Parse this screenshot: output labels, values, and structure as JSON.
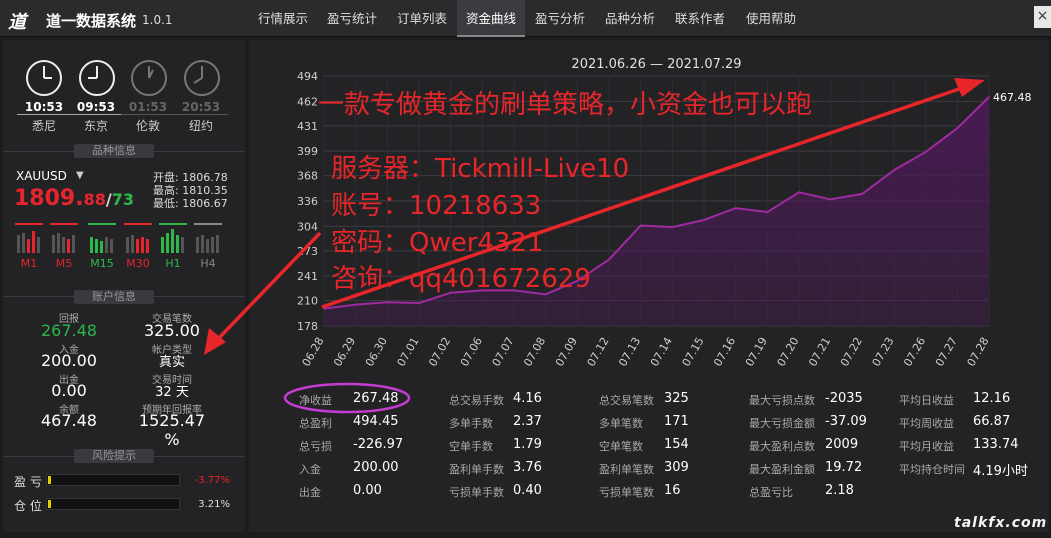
{
  "app": {
    "logo_text": "道一",
    "name": "道一数据系统",
    "version": "1.0.1"
  },
  "tabs": [
    {
      "label": "行情展示",
      "active": false
    },
    {
      "label": "盈亏统计",
      "active": false
    },
    {
      "label": "订单列表",
      "active": false
    },
    {
      "label": "资金曲线",
      "active": true
    },
    {
      "label": "盈亏分析",
      "active": false
    },
    {
      "label": "品种分析",
      "active": false
    },
    {
      "label": "联系作者",
      "active": false
    },
    {
      "label": "使用帮助",
      "active": false
    }
  ],
  "window": {
    "close_label": "×"
  },
  "clocks": [
    {
      "time": "10:53",
      "city": "悉尼",
      "active": true
    },
    {
      "time": "09:53",
      "city": "东京",
      "active": true
    },
    {
      "time": "01:53",
      "city": "伦敦",
      "active": false
    },
    {
      "time": "20:53",
      "city": "纽约",
      "active": false
    }
  ],
  "symbol_info": {
    "title": "品种信息",
    "symbol": "XAUUSD",
    "dropdown_icon": "triangle-down-icon",
    "price_main": "1809.",
    "price_frac": "88",
    "price_sep": "/",
    "price_alt": "73",
    "open_label": "开盘:",
    "open": "1806.78",
    "high_label": "最高:",
    "high": "1810.35",
    "low_label": "最低:",
    "low": "1806.67",
    "timeframes": [
      {
        "label": "M1",
        "color": "#e8242c"
      },
      {
        "label": "M5",
        "color": "#e8242c"
      },
      {
        "label": "M15",
        "color": "#2eb84a"
      },
      {
        "label": "M30",
        "color": "#e8242c"
      },
      {
        "label": "H1",
        "color": "#2eb84a"
      },
      {
        "label": "H4",
        "color": "#888888"
      }
    ]
  },
  "account": {
    "title": "账户信息",
    "return_label": "回报",
    "return_value": "267.48",
    "trades_label": "交易笔数",
    "trades_value": "325.00",
    "deposit_label": "入金",
    "deposit_value": "200.00",
    "account_type_label": "帐户类型",
    "account_type_value": "真实",
    "withdraw_label": "出金",
    "withdraw_value": "0.00",
    "trade_time_label": "交易时间",
    "trade_time_value": "32 天",
    "balance_label": "余额",
    "balance_value": "467.48",
    "annual_label": "预期年回报率",
    "annual_value": "1525.47 %"
  },
  "risk": {
    "title": "风险提示",
    "pl_label": "盈 亏",
    "pl_value": "-3.77%",
    "pl_level": 0.02,
    "pos_label": "仓 位",
    "pos_value": "3.21%",
    "pos_level": 0.02
  },
  "chart_data": {
    "type": "area",
    "title": "2021.06.26 — 2021.07.29",
    "x": [
      "06.28",
      "06.29",
      "06.30",
      "07.01",
      "07.02",
      "07.06",
      "07.07",
      "07.08",
      "07.09",
      "07.12",
      "07.13",
      "07.14",
      "07.15",
      "07.16",
      "07.19",
      "07.20",
      "07.21",
      "07.22",
      "07.23",
      "07.26",
      "07.27",
      "07.28"
    ],
    "y": [
      200,
      205,
      208,
      207,
      220,
      223,
      223,
      218,
      235,
      262,
      305,
      303,
      312,
      327,
      322,
      347,
      338,
      345,
      375,
      398,
      428,
      467.48
    ],
    "yticks": [
      178,
      210,
      241,
      273,
      304,
      336,
      368,
      399,
      431,
      462,
      494
    ],
    "ylim": [
      178,
      494
    ],
    "end_label": "467.48",
    "line_color": "#a02aa0",
    "fill_color": "#4a1a55",
    "grid": true
  },
  "stats": [
    [
      {
        "label": "净收益",
        "value": "267.48",
        "highlighted": true
      },
      {
        "label": "总盈利",
        "value": "494.45"
      },
      {
        "label": "总亏损",
        "value": "-226.97"
      },
      {
        "label": "入金",
        "value": "200.00"
      },
      {
        "label": "出金",
        "value": "0.00"
      }
    ],
    [
      {
        "label": "总交易手数",
        "value": "4.16"
      },
      {
        "label": "多单手数",
        "value": "2.37"
      },
      {
        "label": "空单手数",
        "value": "1.79"
      },
      {
        "label": "盈利单手数",
        "value": "3.76"
      },
      {
        "label": "亏损单手数",
        "value": "0.40"
      }
    ],
    [
      {
        "label": "总交易笔数",
        "value": "325"
      },
      {
        "label": "多单笔数",
        "value": "171"
      },
      {
        "label": "空单笔数",
        "value": "154"
      },
      {
        "label": "盈利单笔数",
        "value": "309"
      },
      {
        "label": "亏损单笔数",
        "value": "16"
      }
    ],
    [
      {
        "label": "最大亏损点数",
        "value": "-2035"
      },
      {
        "label": "最大亏损金额",
        "value": "-37.09"
      },
      {
        "label": "最大盈利点数",
        "value": "2009"
      },
      {
        "label": "最大盈利金额",
        "value": "19.72"
      },
      {
        "label": "总盈亏比",
        "value": "2.18"
      }
    ],
    [
      {
        "label": "平均日收益",
        "value": "12.16"
      },
      {
        "label": "平均周收益",
        "value": "66.87"
      },
      {
        "label": "平均月收益",
        "value": "133.74"
      },
      {
        "label": "平均持仓时间",
        "value": "4.19小时"
      },
      {
        "label": "",
        "value": ""
      }
    ]
  ],
  "overlay": {
    "line1": "一款专做黄金的刷单策略，小资金也可以跑",
    "line2": "服务器：Tickmill-Live10",
    "line3": "账号：10218633",
    "line4": "密码：Qwer4321",
    "line5": "咨询：qq401672629",
    "color": "#e8262a"
  },
  "watermark": "talkfx.com"
}
